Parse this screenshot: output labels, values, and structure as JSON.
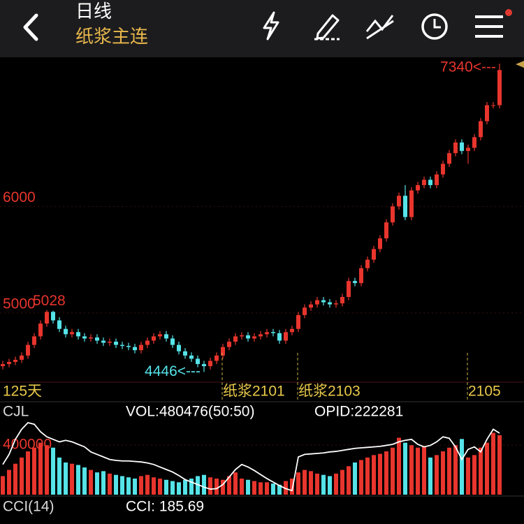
{
  "header": {
    "title": "日线",
    "subtitle": "纸浆主连"
  },
  "chart_data": [
    {
      "type": "candlestick",
      "open": [
        4500,
        4520,
        4540,
        4560,
        4600,
        4700,
        4780,
        4900,
        5010,
        4930,
        4850,
        4800,
        4820,
        4780,
        4760,
        4770,
        4740,
        4720,
        4730,
        4700,
        4690,
        4680,
        4650,
        4700,
        4740,
        4780,
        4800,
        4760,
        4700,
        4640,
        4600,
        4570,
        4520,
        4500,
        4550,
        4600,
        4680,
        4730,
        4780,
        4790,
        4760,
        4780,
        4800,
        4820,
        4810,
        4740,
        4820,
        4850,
        4980,
        5050,
        5080,
        5120,
        5100,
        5080,
        5090,
        5150,
        5300,
        5280,
        5420,
        5500,
        5600,
        5700,
        5850,
        6000,
        6100,
        5900,
        6150,
        6200,
        6250,
        6200,
        6300,
        6400,
        6500,
        6600,
        6520,
        6550,
        6650,
        6800,
        6950,
        6950
      ],
      "high": [
        4550,
        4570,
        4590,
        4630,
        4730,
        4810,
        4930,
        5028,
        5020,
        4960,
        4880,
        4850,
        4850,
        4810,
        4800,
        4800,
        4770,
        4760,
        4760,
        4730,
        4720,
        4710,
        4730,
        4770,
        4810,
        4830,
        4830,
        4790,
        4730,
        4670,
        4630,
        4600,
        4550,
        4580,
        4630,
        4710,
        4760,
        4810,
        4820,
        4820,
        4810,
        4830,
        4850,
        4850,
        4840,
        4850,
        4880,
        5010,
        5080,
        5110,
        5150,
        5150,
        5130,
        5120,
        5180,
        5330,
        5330,
        5450,
        5530,
        5630,
        5730,
        5880,
        6030,
        6130,
        6200,
        6180,
        6230,
        6280,
        6280,
        6330,
        6430,
        6530,
        6630,
        6630,
        6580,
        6680,
        6830,
        6980,
        6980,
        7340
      ],
      "low": [
        4470,
        4490,
        4510,
        4530,
        4570,
        4670,
        4750,
        4870,
        4900,
        4820,
        4770,
        4770,
        4750,
        4730,
        4730,
        4710,
        4690,
        4690,
        4670,
        4660,
        4650,
        4620,
        4620,
        4670,
        4710,
        4750,
        4730,
        4670,
        4610,
        4570,
        4540,
        4490,
        4446,
        4470,
        4520,
        4570,
        4650,
        4700,
        4750,
        4730,
        4730,
        4750,
        4770,
        4780,
        4710,
        4710,
        4790,
        4820,
        4950,
        5020,
        5050,
        5070,
        5050,
        5050,
        5060,
        5120,
        5250,
        5250,
        5390,
        5470,
        5570,
        5670,
        5820,
        5970,
        5870,
        5870,
        6120,
        6170,
        6170,
        6170,
        6270,
        6370,
        6470,
        6490,
        6400,
        6520,
        6620,
        6770,
        6920,
        6920
      ],
      "close": [
        4520,
        4540,
        4560,
        4600,
        4700,
        4780,
        4900,
        5010,
        4930,
        4850,
        4800,
        4820,
        4780,
        4760,
        4770,
        4740,
        4720,
        4730,
        4700,
        4690,
        4680,
        4650,
        4700,
        4740,
        4780,
        4800,
        4760,
        4700,
        4640,
        4600,
        4570,
        4520,
        4500,
        4550,
        4600,
        4680,
        4730,
        4780,
        4790,
        4760,
        4780,
        4800,
        4820,
        4810,
        4740,
        4820,
        4850,
        4980,
        5050,
        5080,
        5120,
        5100,
        5080,
        5090,
        5150,
        5300,
        5280,
        5420,
        5500,
        5600,
        5700,
        5850,
        6000,
        6100,
        5900,
        6150,
        6200,
        6250,
        6200,
        6300,
        6400,
        6500,
        6600,
        6520,
        6550,
        6650,
        6800,
        6950,
        6950,
        7280
      ],
      "up_color": "#e8352d",
      "down_color": "#55e3e8",
      "ylim": [
        4350,
        7380
      ],
      "yticks": [
        5000,
        6000
      ],
      "annotations": [
        {
          "index": 7,
          "value": 5028
        },
        {
          "index": 32,
          "value": 4446,
          "label": "4446<---"
        },
        {
          "index": 79,
          "value": 7340,
          "label": "7340<---"
        }
      ],
      "period_label": "125天",
      "contracts": [
        {
          "index": 35,
          "label": "纸浆2101"
        },
        {
          "index": 47,
          "label": "纸浆2103"
        },
        {
          "index": 74,
          "label": "2105"
        }
      ]
    },
    {
      "type": "bar",
      "title": "CJL",
      "legend_texts": [
        "VOL:480476(50:50)",
        "OPID:222281"
      ],
      "ylim": [
        0,
        610000
      ],
      "yticks": [
        400000
      ],
      "y2lim": [
        100000,
        250000
      ],
      "series": [
        {
          "name": "VOL",
          "values": [
            150000,
            200000,
            250000,
            300000,
            350000,
            380000,
            420000,
            400000,
            380000,
            300000,
            260000,
            250000,
            240000,
            220000,
            200000,
            180000,
            190000,
            170000,
            160000,
            150000,
            140000,
            130000,
            150000,
            160000,
            140000,
            130000,
            120000,
            110000,
            100000,
            120000,
            130000,
            150000,
            160000,
            140000,
            130000,
            120000,
            150000,
            180000,
            130000,
            120000,
            110000,
            100000,
            100000,
            90000,
            80000,
            110000,
            130000,
            180000,
            200000,
            190000,
            170000,
            160000,
            150000,
            170000,
            200000,
            230000,
            260000,
            280000,
            300000,
            320000,
            330000,
            350000,
            380000,
            460000,
            420000,
            400000,
            380000,
            390000,
            300000,
            320000,
            350000,
            380000,
            400000,
            450000,
            300000,
            320000,
            380000,
            420000,
            500000,
            480476
          ]
        },
        {
          "name": "OPID",
          "axis": "y2",
          "color": "#ffffff",
          "values": [
            160000,
            180000,
            210000,
            230000,
            243000,
            240000,
            225000,
            215000,
            210000,
            205000,
            208000,
            205000,
            200000,
            195000,
            185000,
            180000,
            175000,
            170000,
            168000,
            167000,
            167000,
            166000,
            165000,
            163000,
            160000,
            155000,
            150000,
            145000,
            138000,
            130000,
            125000,
            120000,
            115000,
            111000,
            112000,
            120000,
            135000,
            150000,
            160000,
            155000,
            148000,
            140000,
            132000,
            125000,
            118000,
            112000,
            108000,
            175000,
            180000,
            181000,
            182000,
            183000,
            185000,
            186000,
            188000,
            190000,
            192000,
            193000,
            194000,
            195000,
            196000,
            198000,
            200000,
            205000,
            208000,
            210000,
            200000,
            195000,
            198000,
            205000,
            215000,
            212000,
            195000,
            170000,
            190000,
            195000,
            185000,
            210000,
            230000,
            222281
          ]
        }
      ]
    }
  ],
  "indicator": {
    "name": "CCI(14)",
    "label": "CCI: 185.69"
  }
}
